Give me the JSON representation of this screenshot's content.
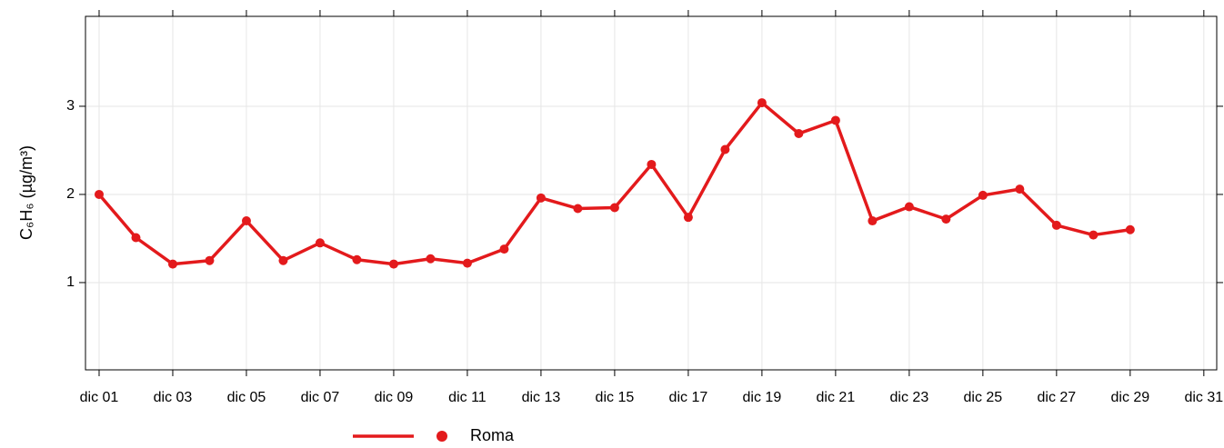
{
  "chart_data": {
    "type": "line",
    "ylabel": "C₆H₆ (µg/m³)",
    "x": [
      1,
      2,
      3,
      4,
      5,
      6,
      7,
      8,
      9,
      10,
      11,
      12,
      13,
      14,
      15,
      16,
      17,
      18,
      19,
      20,
      21,
      22,
      23,
      24,
      25,
      26,
      27,
      28,
      29
    ],
    "series": [
      {
        "name": "Roma",
        "color": "#e31a1c",
        "values": [
          2.0,
          1.51,
          1.21,
          1.25,
          1.7,
          1.25,
          1.45,
          1.26,
          1.21,
          1.27,
          1.22,
          1.38,
          1.96,
          1.84,
          1.85,
          2.34,
          1.74,
          2.51,
          3.04,
          2.69,
          2.84,
          1.7,
          1.86,
          1.72,
          1.99,
          2.06,
          1.65,
          1.54,
          1.6
        ]
      }
    ],
    "xlim": [
      0.63,
      31.35
    ],
    "xticks": [
      {
        "value": 1,
        "label": "dic 01"
      },
      {
        "value": 3,
        "label": "dic 03"
      },
      {
        "value": 5,
        "label": "dic 05"
      },
      {
        "value": 7,
        "label": "dic 07"
      },
      {
        "value": 9,
        "label": "dic 09"
      },
      {
        "value": 11,
        "label": "dic 11"
      },
      {
        "value": 13,
        "label": "dic 13"
      },
      {
        "value": 15,
        "label": "dic 15"
      },
      {
        "value": 17,
        "label": "dic 17"
      },
      {
        "value": 19,
        "label": "dic 19"
      },
      {
        "value": 21,
        "label": "dic 21"
      },
      {
        "value": 23,
        "label": "dic 23"
      },
      {
        "value": 25,
        "label": "dic 25"
      },
      {
        "value": 27,
        "label": "dic 27"
      },
      {
        "value": 29,
        "label": "dic 29"
      },
      {
        "value": 31,
        "label": "dic 31"
      }
    ],
    "ylim": [
      0.01,
      4.02
    ],
    "yticks": [
      1,
      2,
      3
    ],
    "grid": true
  }
}
